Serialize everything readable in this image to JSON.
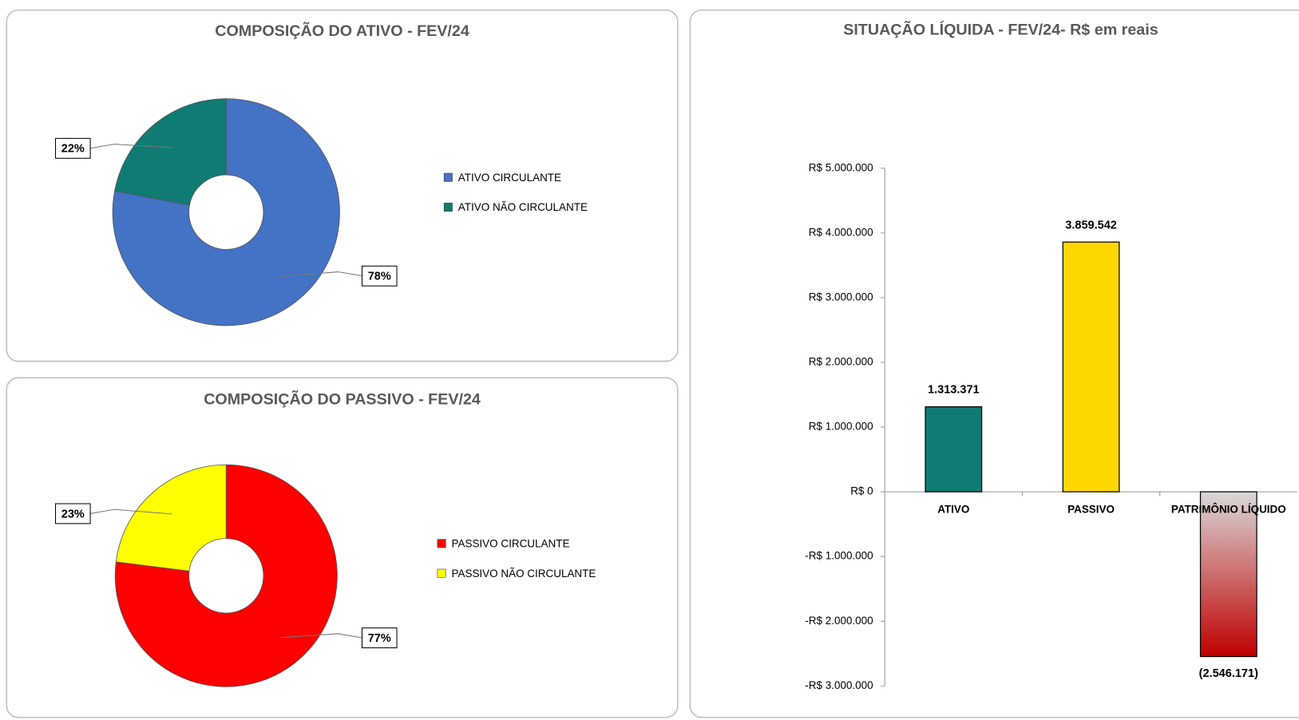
{
  "chart_data": [
    {
      "type": "donut",
      "title": "COMPOSIÇÃO DO ATIVO - FEV/24",
      "categories": [
        "ATIVO CIRCULANTE",
        "ATIVO NÃO CIRCULANTE"
      ],
      "values": [
        78,
        22
      ],
      "value_labels": [
        "78%",
        "22%"
      ],
      "colors": [
        "#4472c4",
        "#0e7c73"
      ],
      "legend": "right"
    },
    {
      "type": "donut",
      "title": "COMPOSIÇÃO DO PASSIVO - FEV/24",
      "categories": [
        "PASSIVO CIRCULANTE",
        "PASSIVO NÃO CIRCULANTE"
      ],
      "values": [
        77,
        23
      ],
      "value_labels": [
        "77%",
        "23%"
      ],
      "colors": [
        "#ff0000",
        "#ffff00"
      ],
      "legend": "right"
    },
    {
      "type": "bar",
      "title": "SITUAÇÃO LÍQUIDA - FEV/24- R$ em reais",
      "categories": [
        "ATIVO",
        "PASSIVO",
        "PATRIMÔNIO LÍQUIDO"
      ],
      "values": [
        1313371,
        3859542,
        -2546171
      ],
      "value_labels": [
        "1.313.371",
        "3.859.542",
        "(2.546.171)"
      ],
      "colors": [
        "#0e7c73",
        "#ffd700",
        "#c00000"
      ],
      "ylim": [
        -3000000,
        5000000
      ],
      "yticks": [
        {
          "value": 5000000,
          "label": "R$ 5.000.000"
        },
        {
          "value": 4000000,
          "label": "R$ 4.000.000"
        },
        {
          "value": 3000000,
          "label": "R$ 3.000.000"
        },
        {
          "value": 2000000,
          "label": "R$ 2.000.000"
        },
        {
          "value": 1000000,
          "label": "R$ 1.000.000"
        },
        {
          "value": 0,
          "label": "R$ 0"
        },
        {
          "value": -1000000,
          "label": "-R$ 1.000.000"
        },
        {
          "value": -2000000,
          "label": "-R$ 2.000.000"
        },
        {
          "value": -3000000,
          "label": "-R$ 3.000.000"
        }
      ],
      "grid": false
    }
  ]
}
